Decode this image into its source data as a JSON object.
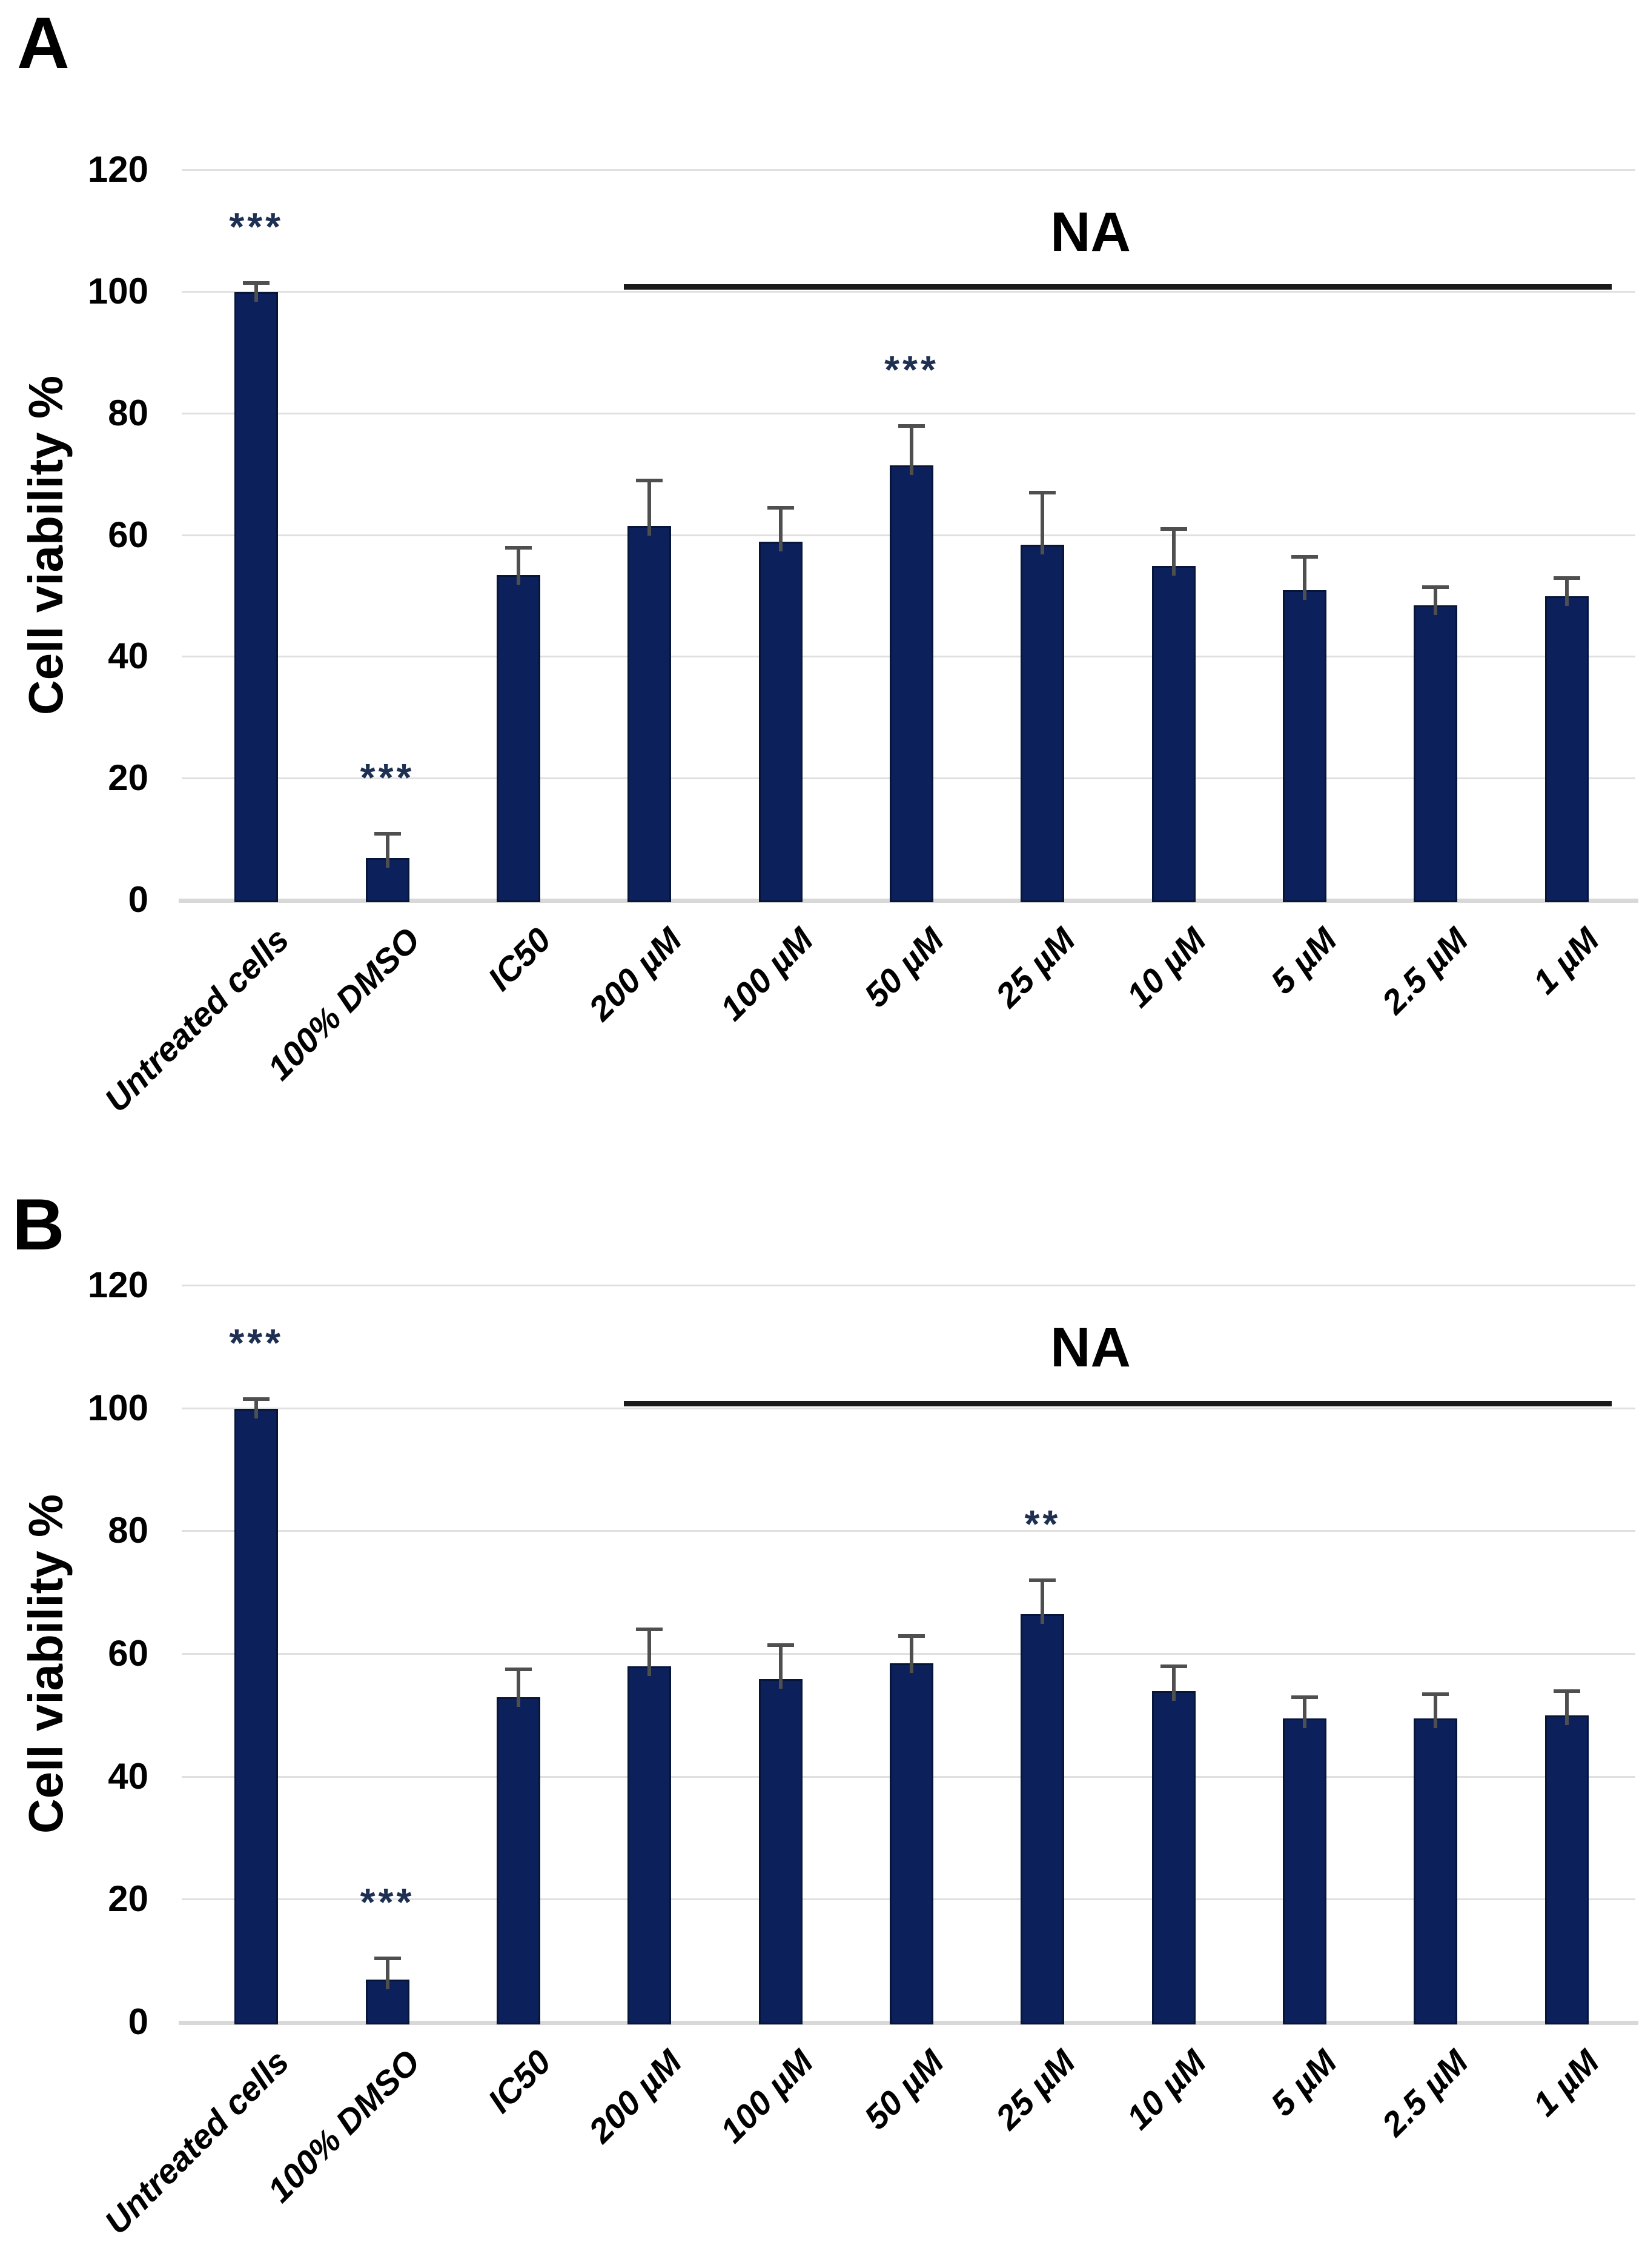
{
  "figure_type": "two-panel cell viability bar chart figure",
  "colors": {
    "bar_fill": "#0c205c",
    "bar_border": "#071538",
    "error_bar": "#4f4f4f",
    "gridline": "#e0e0e0",
    "axis_line": "#d8d8d8",
    "na_line": "#1a1a1a",
    "significance": "#1e3052",
    "text": "#000000",
    "background": "#ffffff"
  },
  "chart_data": [
    {
      "type": "bar",
      "panel": "A",
      "title": "",
      "xlabel": "",
      "ylabel": "Cell viability %",
      "ylim": [
        0,
        120
      ],
      "yticks": [
        0,
        20,
        40,
        60,
        80,
        100,
        120
      ],
      "grid": true,
      "legend": false,
      "categories": [
        "Untreated cells",
        "100% DMSO",
        "IC50",
        "200 µM",
        "100 µM",
        "50 µM",
        "25 µM",
        "10 µM",
        "5 µM",
        "2.5 µM",
        "1 µM"
      ],
      "values": [
        100,
        7,
        53.5,
        61.5,
        59,
        71.5,
        58.5,
        55,
        51,
        48.5,
        50
      ],
      "errors_plus": [
        1.5,
        4,
        4.5,
        7.5,
        5.5,
        6.5,
        8.5,
        6,
        5.5,
        3,
        3
      ],
      "significance": [
        "***",
        "***",
        "",
        "",
        "",
        "***",
        "",
        "",
        "",
        "",
        ""
      ],
      "na_bracket": {
        "label": "NA",
        "from": "200 µM",
        "to": "1 µM"
      }
    },
    {
      "type": "bar",
      "panel": "B",
      "title": "",
      "xlabel": "",
      "ylabel": "Cell viability %",
      "ylim": [
        0,
        120
      ],
      "yticks": [
        0,
        20,
        40,
        60,
        80,
        100,
        120
      ],
      "grid": true,
      "legend": false,
      "categories": [
        "Untreated cells",
        "100% DMSO",
        "IC50",
        "200 µM",
        "100 µM",
        "50 µM",
        "25 µM",
        "10 µM",
        "5 µM",
        "2.5 µM",
        "1 µM"
      ],
      "values": [
        100,
        7,
        53,
        58,
        56,
        58.5,
        66.5,
        54,
        49.5,
        49.5,
        50
      ],
      "errors_plus": [
        1.5,
        3.5,
        4.5,
        6,
        5.5,
        4.5,
        5.5,
        4,
        3.5,
        4,
        4
      ],
      "significance": [
        "***",
        "***",
        "",
        "",
        "",
        "",
        "**",
        "",
        "",
        "",
        ""
      ],
      "na_bracket": {
        "label": "NA",
        "from": "200 µM",
        "to": "1 µM"
      }
    }
  ]
}
